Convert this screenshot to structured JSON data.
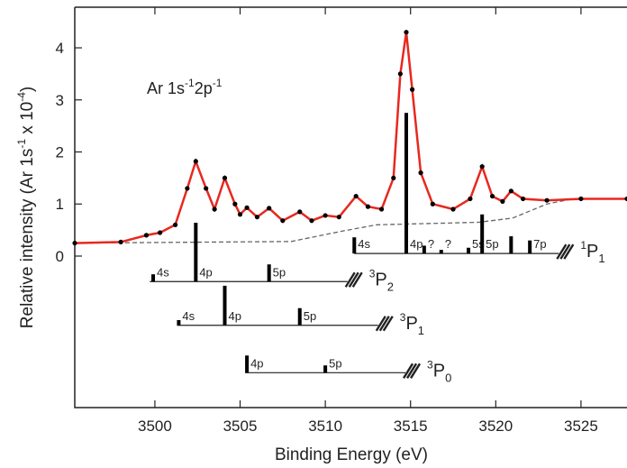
{
  "chart_data": {
    "type": "line",
    "xlabel": "Binding Energy (eV)",
    "ylabel": {
      "a": "Relative intensity (Ar 1s",
      "b": "-1",
      "c": " x 10",
      "d": "-4",
      "e": ")"
    },
    "annotation": {
      "a": "Ar 1s",
      "b": "-1",
      "c": "2p",
      "d": "-1"
    },
    "xlim": [
      3495.3,
      3527.7
    ],
    "ylim": [
      -2.91,
      4.78
    ],
    "xticks": [
      3500,
      3505,
      3510,
      3515,
      3520,
      3525
    ],
    "yticks": [
      0,
      1,
      2,
      3,
      4
    ],
    "series": [
      {
        "style": "points",
        "color": "#000000",
        "x": [
          3495.3,
          3498,
          3499.5,
          3500.3,
          3501.2,
          3501.9,
          3502.4,
          3503,
          3503.5,
          3504.1,
          3504.7,
          3505.0,
          3505.4,
          3506.0,
          3506.7,
          3507.5,
          3508.5,
          3509.2,
          3510.0,
          3510.8,
          3511.8,
          3512.5,
          3513.3,
          3514.0,
          3514.4,
          3514.75,
          3515.1,
          3515.6,
          3516.3,
          3517.5,
          3518.5,
          3519.2,
          3519.8,
          3520.4,
          3520.9,
          3521.6,
          3523,
          3525,
          3527.7
        ],
        "values": [
          0.25,
          0.27,
          0.4,
          0.45,
          0.6,
          1.3,
          1.82,
          1.3,
          0.9,
          1.5,
          1.0,
          0.8,
          0.93,
          0.75,
          0.92,
          0.68,
          0.85,
          0.68,
          0.78,
          0.75,
          1.15,
          0.95,
          0.9,
          1.5,
          3.5,
          4.3,
          3.2,
          1.6,
          1.0,
          0.9,
          1.1,
          1.72,
          1.15,
          1.05,
          1.25,
          1.1,
          1.07,
          1.1,
          1.1
        ]
      },
      {
        "style": "line",
        "color": "#e8281e",
        "x": [
          3495.3,
          3498,
          3499.5,
          3500.3,
          3501.2,
          3501.9,
          3502.4,
          3503,
          3503.5,
          3504.1,
          3504.7,
          3505.0,
          3505.4,
          3506.0,
          3506.7,
          3507.5,
          3508.5,
          3509.2,
          3510.0,
          3510.8,
          3511.8,
          3512.5,
          3513.3,
          3514.0,
          3514.4,
          3514.75,
          3515.1,
          3515.6,
          3516.3,
          3517.5,
          3518.5,
          3519.2,
          3519.8,
          3520.4,
          3520.9,
          3521.6,
          3523,
          3525,
          3527.7
        ],
        "values": [
          0.25,
          0.27,
          0.4,
          0.45,
          0.6,
          1.3,
          1.82,
          1.3,
          0.9,
          1.5,
          1.0,
          0.8,
          0.93,
          0.75,
          0.92,
          0.68,
          0.85,
          0.68,
          0.78,
          0.75,
          1.15,
          0.95,
          0.9,
          1.5,
          3.5,
          4.3,
          3.2,
          1.6,
          1.0,
          0.9,
          1.1,
          1.72,
          1.15,
          1.05,
          1.25,
          1.1,
          1.07,
          1.1,
          1.1
        ]
      },
      {
        "style": "dashed",
        "color": "#666666",
        "x": [
          3495.3,
          3508,
          3511,
          3513,
          3519,
          3521,
          3523,
          3524.5,
          3527.7
        ],
        "values": [
          0.25,
          0.28,
          0.48,
          0.6,
          0.65,
          0.73,
          1.0,
          1.1,
          1.1
        ]
      }
    ],
    "ladders": [
      {
        "term_sup": "1",
        "term": "P",
        "term_sub": "1",
        "base": 0.05,
        "start": 3511.7,
        "end": 3523.7,
        "sticks": [
          {
            "x": 3511.7,
            "top": 0.36,
            "label": "4s"
          },
          {
            "x": 3514.75,
            "top": 2.75,
            "label": "4p"
          },
          {
            "x": 3515.8,
            "top": 0.2,
            "label": "?"
          },
          {
            "x": 3516.8,
            "top": 0.12,
            "label": "?"
          },
          {
            "x": 3518.4,
            "top": 0.16,
            "label": "5s"
          },
          {
            "x": 3519.2,
            "top": 0.8,
            "label": "5p"
          },
          {
            "x": 3520.9,
            "top": 0.38,
            "label": null
          },
          {
            "x": 3522.0,
            "top": 0.3,
            "label": "7p"
          }
        ]
      },
      {
        "term_sup": "3",
        "term": "P",
        "term_sub": "2",
        "base": -0.49,
        "start": 3499.7,
        "end": 3511.3,
        "sticks": [
          {
            "x": 3499.9,
            "top": -0.35,
            "label": "4s"
          },
          {
            "x": 3502.4,
            "top": 0.64,
            "label": "4p"
          },
          {
            "x": 3506.7,
            "top": -0.16,
            "label": "5p"
          }
        ]
      },
      {
        "term_sup": "3",
        "term": "P",
        "term_sub": "1",
        "base": -1.33,
        "start": 3501.3,
        "end": 3513.1,
        "sticks": [
          {
            "x": 3501.4,
            "top": -1.23,
            "label": "4s"
          },
          {
            "x": 3504.1,
            "top": -0.57,
            "label": "4p"
          },
          {
            "x": 3508.5,
            "top": -1.0,
            "label": "5p"
          }
        ]
      },
      {
        "term_sup": "3",
        "term": "P",
        "term_sub": "0",
        "base": -2.24,
        "start": 3505.3,
        "end": 3514.7,
        "sticks": [
          {
            "x": 3505.4,
            "top": -1.91,
            "label": "4p"
          },
          {
            "x": 3510.0,
            "top": -2.1,
            "label": "5p"
          }
        ]
      }
    ]
  }
}
